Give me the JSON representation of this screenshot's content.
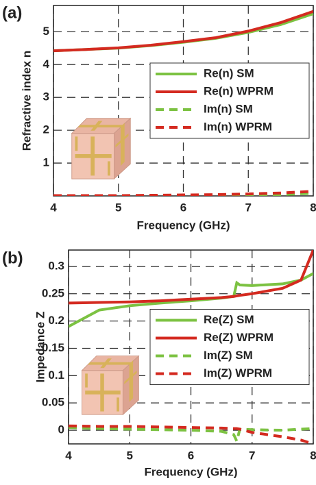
{
  "chart_data": [
    {
      "type": "line",
      "panel_label": "(a)",
      "xlabel": "Frequency (GHz)",
      "ylabel": "Refractive index n",
      "x": [
        4,
        4.5,
        5,
        5.5,
        6,
        6.5,
        7,
        7.5,
        8
      ],
      "xlim": [
        4,
        8
      ],
      "xticks": [
        4,
        5,
        6,
        7,
        8
      ],
      "ylim": [
        0,
        5.8
      ],
      "yticks": [
        1,
        2,
        3,
        4,
        5
      ],
      "grid": true,
      "legend": "center right",
      "series": [
        {
          "name": "Re(n) SM",
          "color": "#7cc242",
          "style": "solid",
          "values": [
            4.42,
            4.46,
            4.5,
            4.58,
            4.68,
            4.8,
            4.98,
            5.22,
            5.55
          ]
        },
        {
          "name": "Re(n) WPRM",
          "color": "#d42a20",
          "style": "solid",
          "values": [
            4.42,
            4.46,
            4.51,
            4.59,
            4.7,
            4.82,
            5.02,
            5.28,
            5.62
          ]
        },
        {
          "name": "Im(n) SM",
          "color": "#7cc242",
          "style": "dashed",
          "values": [
            0,
            0,
            0,
            0,
            0,
            0.01,
            0.02,
            0.04,
            0.08
          ]
        },
        {
          "name": "Im(n) WPRM",
          "color": "#d42a20",
          "style": "dashed",
          "values": [
            0.01,
            0.01,
            0.01,
            0.02,
            0.03,
            0.04,
            0.06,
            0.09,
            0.14
          ]
        }
      ]
    },
    {
      "type": "line",
      "panel_label": "(b)",
      "xlabel": "Frequency (GHz)",
      "ylabel": "Impedance Z",
      "x": [
        4,
        4.5,
        5,
        5.5,
        6,
        6.5,
        6.7,
        6.75,
        6.8,
        7,
        7.5,
        7.8,
        8
      ],
      "xlim": [
        4,
        8
      ],
      "xticks": [
        4,
        5,
        6,
        7,
        8
      ],
      "ylim": [
        -0.025,
        0.33
      ],
      "yticks": [
        0,
        0.05,
        0.1,
        0.15,
        0.2,
        0.25,
        0.3
      ],
      "grid": true,
      "legend": "center right",
      "series": [
        {
          "name": "Re(Z) SM",
          "color": "#7cc242",
          "style": "solid",
          "values": [
            0.19,
            0.22,
            0.228,
            0.233,
            0.237,
            0.242,
            0.245,
            0.27,
            0.266,
            0.265,
            0.268,
            0.275,
            0.287
          ]
        },
        {
          "name": "Re(Z) WPRM",
          "color": "#d42a20",
          "style": "solid",
          "values": [
            0.233,
            0.234,
            0.235,
            0.237,
            0.24,
            0.243,
            0.245,
            0.246,
            0.247,
            0.25,
            0.26,
            0.275,
            0.33
          ]
        },
        {
          "name": "Im(Z) SM",
          "color": "#7cc242",
          "style": "dashed",
          "values": [
            0.005,
            0.003,
            0.002,
            0.001,
            0,
            -0.002,
            -0.008,
            -0.02,
            0.002,
            0.001,
            0,
            0.002,
            0.003
          ]
        },
        {
          "name": "Im(Z) WPRM",
          "color": "#d42a20",
          "style": "dashed",
          "values": [
            0.008,
            0.007,
            0.007,
            0.006,
            0.005,
            0.004,
            0.003,
            0.003,
            0.002,
            -0.004,
            -0.012,
            -0.018,
            -0.025
          ]
        }
      ]
    }
  ]
}
